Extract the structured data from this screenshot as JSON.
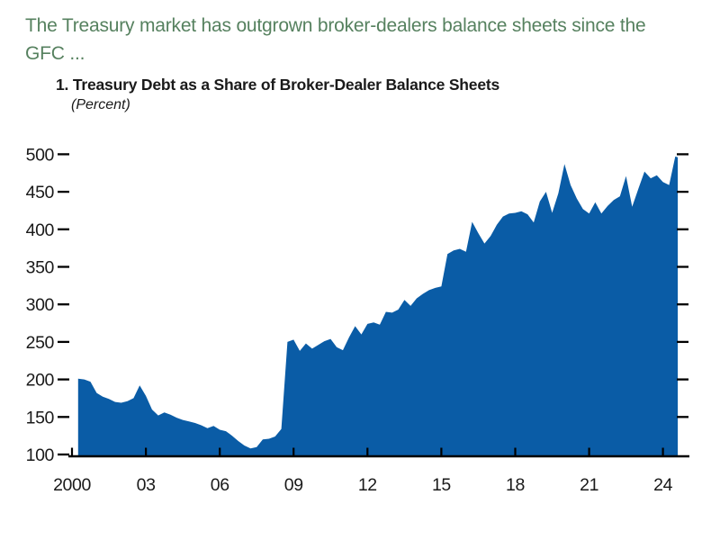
{
  "header": {
    "line1": "The Treasury market has outgrown broker-dealers balance sheets since the",
    "line2": "GFC ...",
    "color": "#56815f"
  },
  "panel": {
    "title": "1. Treasury Debt as a Share of Broker-Dealer Balance Sheets",
    "unit": "(Percent)"
  },
  "chart_data": {
    "type": "area",
    "title": "Treasury Debt as a Share of Broker-Dealer Balance Sheets",
    "ylabel": "Percent",
    "xlabel": "",
    "grid": false,
    "legend": "none",
    "area_color": "#0a5ca6",
    "axis_color": "#000000",
    "text_color": "#1a1a1a",
    "xlim": [
      2000,
      2025
    ],
    "ylim": [
      100,
      500
    ],
    "yticks": [
      100,
      150,
      200,
      250,
      300,
      350,
      400,
      450,
      500
    ],
    "xticks": [
      {
        "value": 2000,
        "label": "2000"
      },
      {
        "value": 2003,
        "label": "03"
      },
      {
        "value": 2006,
        "label": "06"
      },
      {
        "value": 2009,
        "label": "09"
      },
      {
        "value": 2012,
        "label": "12"
      },
      {
        "value": 2015,
        "label": "15"
      },
      {
        "value": 2018,
        "label": "18"
      },
      {
        "value": 2021,
        "label": "21"
      },
      {
        "value": 2024,
        "label": "24"
      }
    ],
    "x": [
      2000.25,
      2000.5,
      2000.75,
      2001,
      2001.25,
      2001.5,
      2001.75,
      2002,
      2002.25,
      2002.5,
      2002.75,
      2003,
      2003.25,
      2003.5,
      2003.75,
      2004,
      2004.25,
      2004.5,
      2004.75,
      2005,
      2005.25,
      2005.5,
      2005.75,
      2006,
      2006.25,
      2006.5,
      2006.75,
      2007,
      2007.25,
      2007.5,
      2007.75,
      2008,
      2008.25,
      2008.5,
      2008.75,
      2009,
      2009.25,
      2009.5,
      2009.75,
      2010,
      2010.25,
      2010.5,
      2010.75,
      2011,
      2011.25,
      2011.5,
      2011.75,
      2012,
      2012.25,
      2012.5,
      2012.75,
      2013,
      2013.25,
      2013.5,
      2013.75,
      2014,
      2014.25,
      2014.5,
      2014.75,
      2015,
      2015.25,
      2015.5,
      2015.75,
      2016,
      2016.25,
      2016.5,
      2016.75,
      2017,
      2017.25,
      2017.5,
      2017.75,
      2018,
      2018.25,
      2018.5,
      2018.75,
      2019,
      2019.25,
      2019.5,
      2019.75,
      2020,
      2020.25,
      2020.5,
      2020.75,
      2021,
      2021.25,
      2021.5,
      2021.75,
      2022,
      2022.25,
      2022.5,
      2022.75,
      2023,
      2023.25,
      2023.5,
      2023.75,
      2024,
      2024.25,
      2024.5,
      2024.6
    ],
    "values": [
      201,
      200,
      197,
      182,
      177,
      174,
      170,
      169,
      171,
      175,
      192,
      178,
      160,
      152,
      156,
      153,
      149,
      146,
      144,
      142,
      139,
      135,
      138,
      133,
      131,
      125,
      118,
      112,
      108,
      110,
      120,
      121,
      124,
      134,
      250,
      253,
      238,
      248,
      241,
      246,
      251,
      254,
      243,
      239,
      256,
      271,
      260,
      274,
      276,
      273,
      290,
      289,
      293,
      306,
      298,
      308,
      314,
      319,
      322,
      324,
      367,
      372,
      374,
      370,
      410,
      395,
      381,
      391,
      406,
      417,
      421,
      422,
      424,
      420,
      409,
      437,
      450,
      422,
      448,
      487,
      459,
      441,
      427,
      421,
      436,
      421,
      431,
      439,
      444,
      471,
      430,
      454,
      477,
      468,
      472,
      463,
      459,
      497,
      496
    ]
  }
}
